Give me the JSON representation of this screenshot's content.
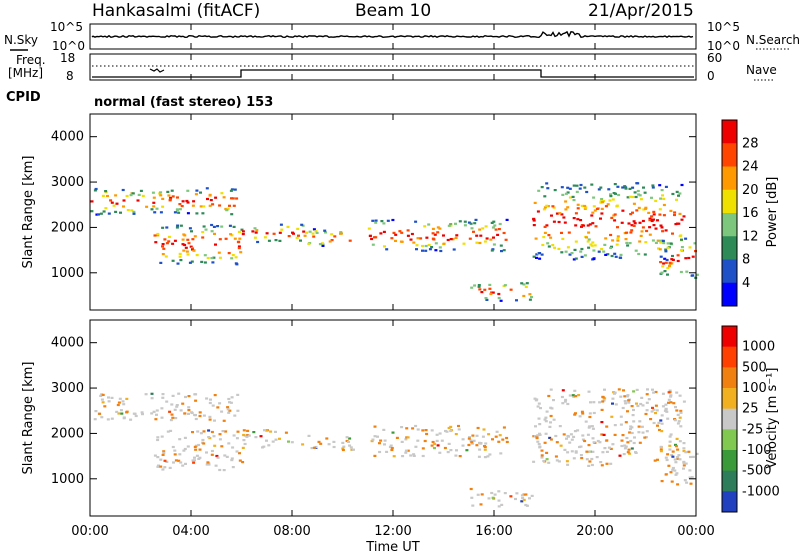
{
  "chart_data": {
    "type": "heatmap",
    "header": {
      "station": "Hankasalmi (fitACF)",
      "beam": "Beam 10",
      "date": "21/Apr/2015"
    },
    "cpid_text": "normal (fast stereo) 153",
    "cpid_label": "CPID",
    "xlabel": "Time UT",
    "x_ticks": [
      "00:00",
      "04:00",
      "08:00",
      "12:00",
      "16:00",
      "20:00",
      "00:00"
    ],
    "sky_panel": {
      "left_label": "N.Sky",
      "right_label": "N.Search",
      "left_ticks": [
        "10^5",
        "10^0"
      ],
      "right_ticks": [
        "10^5",
        "10^0"
      ]
    },
    "freq_panel": {
      "left_label": "Freq.",
      "left_unit": "[MHz]",
      "right_label": "Nave",
      "left_ticks": [
        "18",
        "8"
      ],
      "right_ticks": [
        "60",
        "0"
      ]
    },
    "panels": [
      {
        "name": "power",
        "ylabel": "Slant Range [km]",
        "yticks": [
          1000,
          2000,
          3000,
          4000
        ],
        "colorbar_label": "Power [dB]",
        "colorbar_ticks": [
          "28",
          "24",
          "20",
          "16",
          "12",
          "8",
          "4"
        ],
        "colors": [
          "#0000ff",
          "#1e50c8",
          "#2e8b57",
          "#7dc67d",
          "#f0e000",
          "#ff9900",
          "#ff4500",
          "#ee0000"
        ]
      },
      {
        "name": "velocity",
        "ylabel": "Slant Range [km]",
        "yticks": [
          1000,
          2000,
          3000,
          4000
        ],
        "colorbar_label": "Velocity [m s⁻¹]",
        "colorbar_ticks": [
          "1000",
          "500",
          "100",
          "25",
          "-25",
          "-100",
          "-500",
          "-1000"
        ],
        "colors": [
          "#2040c0",
          "#2e7d5a",
          "#3a9a3a",
          "#80c850",
          "#c8c8c8",
          "#f0b020",
          "#f08010",
          "#ff4000",
          "#ee0000"
        ]
      }
    ],
    "x_range_hours": [
      0,
      24
    ],
    "y_range_km": [
      180,
      4500
    ],
    "bands": [
      {
        "t0": 0.0,
        "t1": 6.0,
        "r0": 2300,
        "r1": 2900
      },
      {
        "t0": 2.5,
        "t1": 6.0,
        "r0": 1200,
        "r1": 2100
      },
      {
        "t0": 6.0,
        "t1": 8.5,
        "r0": 1700,
        "r1": 2100
      },
      {
        "t0": 8.5,
        "t1": 10.5,
        "r0": 1600,
        "r1": 2000
      },
      {
        "t0": 11.0,
        "t1": 16.5,
        "r0": 1500,
        "r1": 2200
      },
      {
        "t0": 15.0,
        "t1": 17.5,
        "r0": 400,
        "r1": 800
      },
      {
        "t0": 17.5,
        "t1": 23.5,
        "r0": 1300,
        "r1": 3000
      },
      {
        "t0": 22.5,
        "t1": 24.0,
        "r0": 900,
        "r1": 1800
      }
    ]
  }
}
